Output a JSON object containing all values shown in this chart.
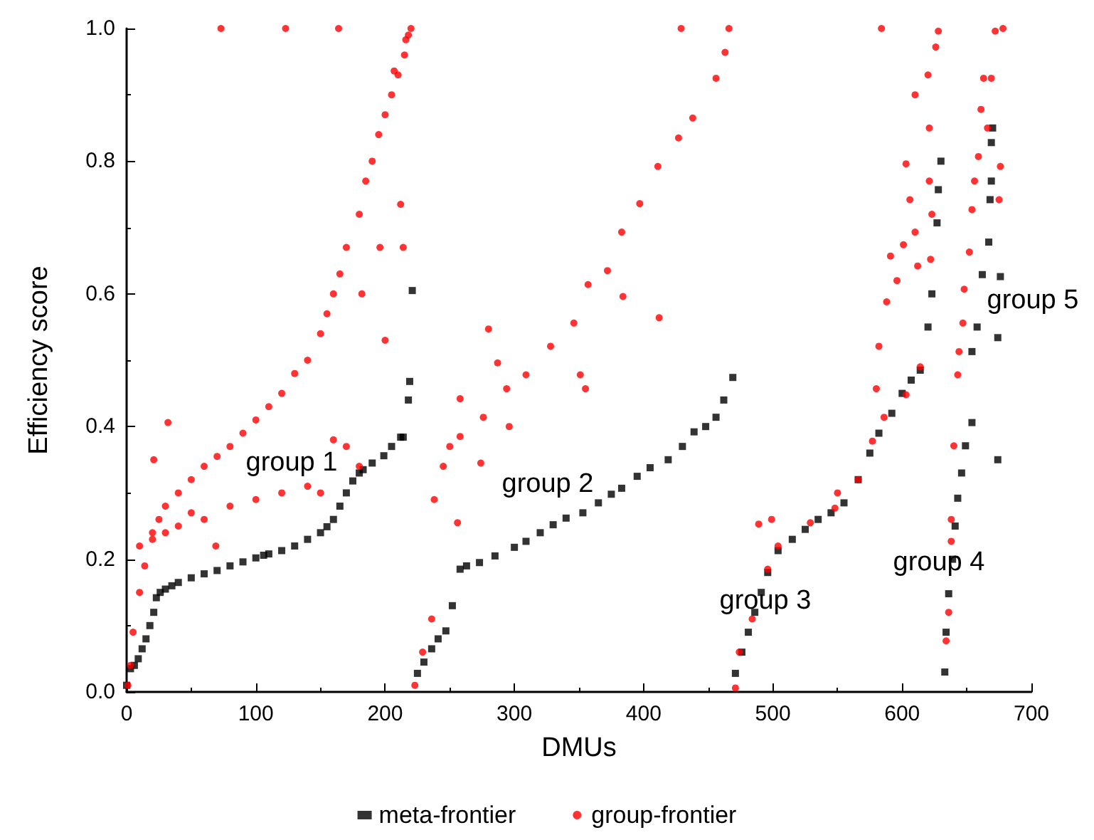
{
  "chart_data": {
    "type": "scatter",
    "xlabel": "DMUs",
    "ylabel": "Efficiency score",
    "xlim": [
      0,
      700
    ],
    "ylim": [
      0,
      1
    ],
    "xticks": [
      0,
      100,
      200,
      300,
      400,
      500,
      600,
      700
    ],
    "yticks": [
      {
        "value": 0,
        "label": "0.0"
      },
      0.2,
      0.4,
      0.6,
      0.8,
      {
        "value": 1,
        "label": "1.0"
      }
    ],
    "legend": "bottom",
    "annotations": [
      "group 1",
      "group 2",
      "group 3",
      "group 4",
      "group 5"
    ],
    "series": [
      {
        "name": "meta-frontier",
        "color": "#000000",
        "marker": "square",
        "x": [
          0,
          3,
          6,
          9,
          12,
          15,
          18,
          21,
          23,
          26,
          30,
          35,
          40,
          50,
          60,
          70,
          80,
          90,
          100,
          106,
          110,
          120,
          130,
          140,
          150,
          155,
          160,
          165,
          170,
          175,
          180,
          183,
          190,
          199,
          205,
          212,
          214,
          218,
          219,
          221,
          225,
          230,
          236,
          241,
          247,
          252,
          258,
          263,
          273,
          285,
          300,
          309,
          320,
          330,
          340,
          353,
          365,
          375,
          383,
          395,
          405,
          419,
          430,
          439,
          448,
          456,
          462,
          469,
          471,
          476,
          481,
          486,
          491,
          496,
          504,
          515,
          525,
          535,
          545,
          555,
          566,
          575,
          582,
          592,
          600,
          607,
          614,
          620,
          623,
          627,
          628,
          630,
          633,
          634,
          636,
          639,
          641,
          643,
          646,
          649,
          654,
          654,
          658,
          662,
          667,
          668,
          669,
          669,
          670,
          674,
          674,
          676
        ],
        "values": [
          0.01,
          0.035,
          0.04,
          0.05,
          0.065,
          0.08,
          0.1,
          0.12,
          0.142,
          0.15,
          0.155,
          0.16,
          0.165,
          0.172,
          0.178,
          0.183,
          0.19,
          0.196,
          0.202,
          0.206,
          0.208,
          0.213,
          0.22,
          0.23,
          0.24,
          0.249,
          0.26,
          0.28,
          0.3,
          0.318,
          0.33,
          0.335,
          0.345,
          0.356,
          0.37,
          0.384,
          0.384,
          0.44,
          0.468,
          0.605,
          0.028,
          0.045,
          0.065,
          0.08,
          0.092,
          0.13,
          0.185,
          0.19,
          0.195,
          0.205,
          0.218,
          0.227,
          0.24,
          0.252,
          0.262,
          0.27,
          0.285,
          0.298,
          0.307,
          0.325,
          0.338,
          0.35,
          0.37,
          0.392,
          0.4,
          0.414,
          0.44,
          0.474,
          0.028,
          0.06,
          0.09,
          0.12,
          0.15,
          0.18,
          0.213,
          0.23,
          0.245,
          0.26,
          0.27,
          0.285,
          0.32,
          0.36,
          0.39,
          0.42,
          0.45,
          0.47,
          0.485,
          0.55,
          0.6,
          0.707,
          0.757,
          0.8,
          0.03,
          0.09,
          0.148,
          0.2,
          0.25,
          0.292,
          0.33,
          0.371,
          0.406,
          0.513,
          0.55,
          0.629,
          0.678,
          0.742,
          0.77,
          0.828,
          0.85,
          0.534,
          0.35,
          0.626
        ]
      },
      {
        "name": "group-frontier",
        "color": "#ff0000",
        "marker": "circle",
        "x": [
          1,
          3,
          5,
          10,
          14,
          20,
          25,
          30,
          40,
          50,
          60,
          70,
          80,
          90,
          100,
          110,
          120,
          130,
          140,
          150,
          155,
          160,
          165,
          170,
          180,
          185,
          190,
          195,
          200,
          205,
          210,
          215,
          218,
          220,
          10,
          20,
          30,
          40,
          50,
          60,
          80,
          100,
          120,
          140,
          150,
          160,
          170,
          180,
          32,
          21,
          69,
          212,
          196,
          200,
          182,
          214,
          73,
          123,
          164,
          223,
          229,
          236,
          238,
          245,
          250,
          256,
          258,
          276,
          294,
          309,
          328,
          346,
          357,
          372,
          383,
          397,
          411,
          427,
          438,
          456,
          463,
          466,
          280,
          287,
          258,
          296,
          351,
          355,
          384,
          412,
          274,
          429,
          216,
          207,
          471,
          474,
          484,
          489,
          496,
          499,
          504,
          529,
          548,
          550,
          566,
          577,
          580,
          582,
          586,
          588,
          591,
          596,
          601,
          603,
          603,
          606,
          610,
          610,
          612,
          614,
          620,
          621,
          621,
          622,
          623,
          626,
          628,
          584,
          634,
          636,
          638,
          638,
          640,
          643,
          644,
          647,
          648,
          652,
          654,
          656,
          659,
          661,
          663,
          666,
          669,
          672,
          675,
          676,
          678
        ],
        "values": [
          0.01,
          0.04,
          0.09,
          0.15,
          0.19,
          0.24,
          0.26,
          0.28,
          0.3,
          0.32,
          0.34,
          0.355,
          0.37,
          0.39,
          0.41,
          0.43,
          0.45,
          0.48,
          0.5,
          0.54,
          0.57,
          0.6,
          0.63,
          0.67,
          0.72,
          0.77,
          0.8,
          0.84,
          0.87,
          0.9,
          0.93,
          0.96,
          0.99,
          1,
          0.22,
          0.23,
          0.24,
          0.25,
          0.27,
          0.26,
          0.28,
          0.29,
          0.3,
          0.31,
          0.3,
          0.38,
          0.37,
          0.34,
          0.406,
          0.35,
          0.22,
          0.735,
          0.67,
          0.53,
          0.6,
          0.67,
          1,
          1,
          1,
          0.01,
          0.06,
          0.11,
          0.29,
          0.34,
          0.37,
          0.255,
          0.385,
          0.414,
          0.457,
          0.478,
          0.521,
          0.556,
          0.614,
          0.635,
          0.693,
          0.736,
          0.792,
          0.835,
          0.865,
          0.925,
          0.964,
          1,
          0.547,
          0.496,
          0.442,
          0.4,
          0.478,
          0.457,
          0.596,
          0.564,
          0.345,
          1,
          0.983,
          0.936,
          0.006,
          0.06,
          0.11,
          0.253,
          0.185,
          0.26,
          0.22,
          0.255,
          0.277,
          0.3,
          0.32,
          0.378,
          0.457,
          0.521,
          0.414,
          0.588,
          0.657,
          0.62,
          0.674,
          0.448,
          0.796,
          0.742,
          0.693,
          0.9,
          0.642,
          0.49,
          0.93,
          0.85,
          0.77,
          0.652,
          0.72,
          0.972,
          0.996,
          1,
          0.077,
          0.12,
          0.227,
          0.26,
          0.371,
          0.478,
          0.513,
          0.556,
          0.607,
          0.663,
          0.727,
          0.77,
          0.807,
          0.878,
          0.925,
          0.85,
          0.925,
          0.996,
          0.742,
          0.792,
          1
        ]
      }
    ]
  }
}
